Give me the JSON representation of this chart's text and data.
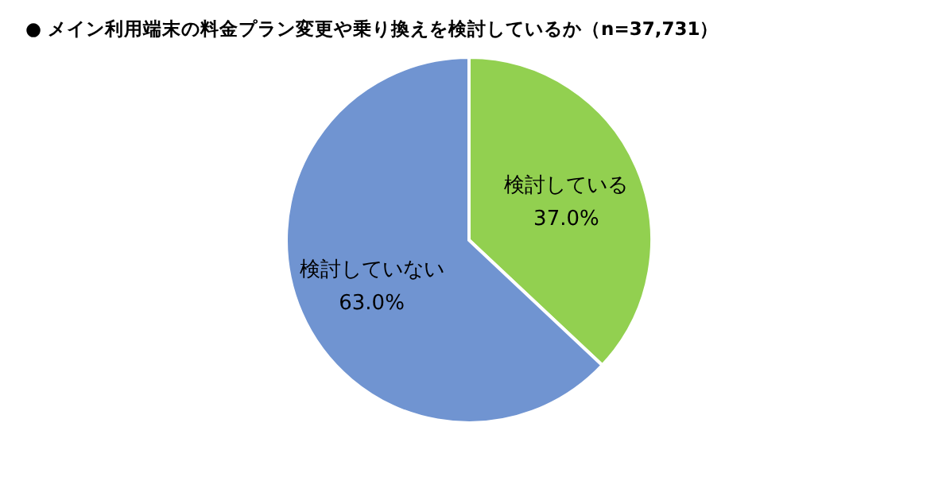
{
  "chart_data": {
    "type": "pie",
    "title": "● メイン利用端末の料金プラン変更や乗り換えを検討しているか（n=37,731）",
    "categories": [
      "検討している",
      "検討していない"
    ],
    "values": [
      37.0,
      63.0
    ],
    "colors": [
      "#92d050",
      "#7094d1"
    ],
    "value_labels": [
      "37.0%",
      "63.0%"
    ],
    "legend": false
  }
}
